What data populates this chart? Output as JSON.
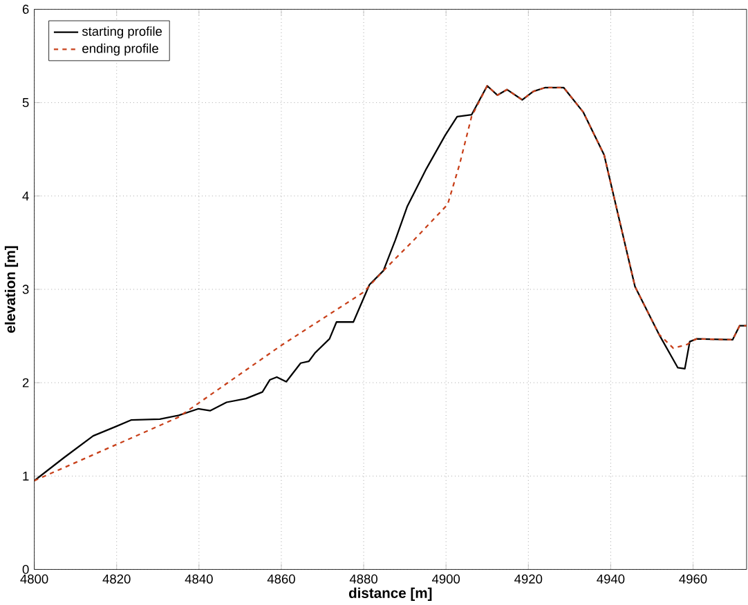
{
  "chart_data": {
    "type": "line",
    "xlabel": "distance [m]",
    "ylabel": "elevation [m]",
    "xlim": [
      4800,
      4973
    ],
    "ylim": [
      0,
      6
    ],
    "xticks": [
      4800,
      4820,
      4840,
      4860,
      4880,
      4900,
      4920,
      4940,
      4960
    ],
    "yticks": [
      0,
      1,
      2,
      3,
      4,
      5,
      6
    ],
    "grid": true,
    "legend": "top left",
    "series": [
      {
        "name": "starting profile",
        "color": "#000000",
        "line_style": "solid",
        "x": [
          4800,
          4807.3,
          4814.3,
          4819.8,
          4823.5,
          4830.5,
          4835.1,
          4839.8,
          4842.7,
          4846.7,
          4851.4,
          4855.4,
          4857.2,
          4858.9,
          4861.2,
          4864.7,
          4866.7,
          4868.2,
          4871.7,
          4873.4,
          4877.5,
          4881.4,
          4884.8,
          4887.7,
          4890.6,
          4895.2,
          4899.8,
          4902.7,
          4906.2,
          4910.0,
          4912.5,
          4914.8,
          4918.5,
          4921.2,
          4924.0,
          4928.6,
          4933.3,
          4938.4,
          4941.9,
          4945.9,
          4951.7,
          4956.3,
          4958.0,
          4959.2,
          4960.9,
          4969.6,
          4971.3,
          4973
        ],
        "values": [
          0.95,
          1.2,
          1.43,
          1.53,
          1.6,
          1.61,
          1.65,
          1.72,
          1.7,
          1.79,
          1.83,
          1.9,
          2.03,
          2.06,
          2.01,
          2.21,
          2.23,
          2.32,
          2.47,
          2.65,
          2.65,
          3.05,
          3.2,
          3.53,
          3.89,
          4.29,
          4.65,
          4.85,
          4.87,
          5.18,
          5.08,
          5.14,
          5.03,
          5.12,
          5.16,
          5.16,
          4.9,
          4.44,
          3.78,
          3.03,
          2.52,
          2.16,
          2.15,
          2.44,
          2.47,
          2.46,
          2.61,
          2.61
        ]
      },
      {
        "name": "ending profile",
        "color": "#c8401a",
        "line_style": "dashed",
        "x": [
          4800,
          4835,
          4860,
          4880,
          4884.8,
          4892.9,
          4900.4,
          4903.3,
          4906.2,
          4910.0,
          4912.5,
          4914.8,
          4918.5,
          4921.2,
          4924.0,
          4928.6,
          4933.3,
          4938.4,
          4941.9,
          4945.9,
          4951.7,
          4955.2,
          4958.6,
          4959.8,
          4960.9,
          4969.6,
          4971.3,
          4973
        ],
        "values": [
          0.95,
          1.63,
          2.4,
          2.97,
          3.2,
          3.56,
          3.91,
          4.34,
          4.85,
          5.18,
          5.08,
          5.14,
          5.03,
          5.12,
          5.16,
          5.16,
          4.9,
          4.44,
          3.78,
          3.03,
          2.52,
          2.37,
          2.41,
          2.45,
          2.47,
          2.46,
          2.61,
          2.61
        ]
      }
    ]
  }
}
